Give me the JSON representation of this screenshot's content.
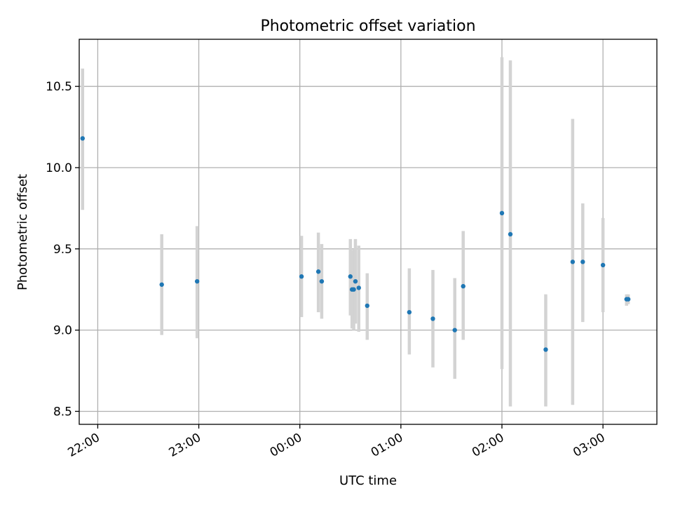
{
  "chart_data": {
    "type": "scatter",
    "title": "Photometric offset variation",
    "xlabel": "UTC time",
    "ylabel": "Photometric offset",
    "x_axis_type": "time",
    "x_time_reference_day": "2000-01-01",
    "xlim": [
      "2000-01-01T21:49:00",
      "2000-01-02T03:32:00"
    ],
    "ylim": [
      8.42,
      10.79
    ],
    "x_ticks": [
      {
        "time": "2000-01-01T22:00:00",
        "label": "22:00"
      },
      {
        "time": "2000-01-01T23:00:00",
        "label": "23:00"
      },
      {
        "time": "2000-01-02T00:00:00",
        "label": "00:00"
      },
      {
        "time": "2000-01-02T01:00:00",
        "label": "01:00"
      },
      {
        "time": "2000-01-02T02:00:00",
        "label": "02:00"
      },
      {
        "time": "2000-01-02T03:00:00",
        "label": "03:00"
      }
    ],
    "y_ticks": [
      {
        "value": 8.5,
        "label": "8.5"
      },
      {
        "value": 9.0,
        "label": "9.0"
      },
      {
        "value": 9.5,
        "label": "9.5"
      },
      {
        "value": 10.0,
        "label": "10.0"
      },
      {
        "value": 10.5,
        "label": "10.5"
      }
    ],
    "grid": true,
    "x_tick_rotation_deg": 30,
    "point_color": "#1f77b4",
    "errorbar_color": "#d3d3d3",
    "points": [
      {
        "time": "2000-01-01T21:51:00",
        "y": 10.18,
        "yerr_low": 9.74,
        "yerr_high": 10.61
      },
      {
        "time": "2000-01-01T22:38:00",
        "y": 9.28,
        "yerr_low": 8.97,
        "yerr_high": 9.59
      },
      {
        "time": "2000-01-01T22:59:00",
        "y": 9.3,
        "yerr_low": 8.95,
        "yerr_high": 9.64
      },
      {
        "time": "2000-01-02T00:01:00",
        "y": 9.33,
        "yerr_low": 9.08,
        "yerr_high": 9.58
      },
      {
        "time": "2000-01-02T00:11:00",
        "y": 9.36,
        "yerr_low": 9.11,
        "yerr_high": 9.6
      },
      {
        "time": "2000-01-02T00:13:00",
        "y": 9.3,
        "yerr_low": 9.07,
        "yerr_high": 9.53
      },
      {
        "time": "2000-01-02T00:30:00",
        "y": 9.33,
        "yerr_low": 9.09,
        "yerr_high": 9.56
      },
      {
        "time": "2000-01-02T00:31:00",
        "y": 9.25,
        "yerr_low": 9.01,
        "yerr_high": 9.49
      },
      {
        "time": "2000-01-02T00:32:00",
        "y": 9.25,
        "yerr_low": 9.0,
        "yerr_high": 9.5
      },
      {
        "time": "2000-01-02T00:33:00",
        "y": 9.3,
        "yerr_low": 9.04,
        "yerr_high": 9.56
      },
      {
        "time": "2000-01-02T00:35:00",
        "y": 9.26,
        "yerr_low": 8.99,
        "yerr_high": 9.52
      },
      {
        "time": "2000-01-02T00:40:00",
        "y": 9.15,
        "yerr_low": 8.94,
        "yerr_high": 9.35
      },
      {
        "time": "2000-01-02T01:05:00",
        "y": 9.11,
        "yerr_low": 8.85,
        "yerr_high": 9.38
      },
      {
        "time": "2000-01-02T01:19:00",
        "y": 9.07,
        "yerr_low": 8.77,
        "yerr_high": 9.37
      },
      {
        "time": "2000-01-02T01:32:00",
        "y": 9.0,
        "yerr_low": 8.7,
        "yerr_high": 9.32
      },
      {
        "time": "2000-01-02T01:37:00",
        "y": 9.27,
        "yerr_low": 8.94,
        "yerr_high": 9.61
      },
      {
        "time": "2000-01-02T02:00:00",
        "y": 9.72,
        "yerr_low": 8.76,
        "yerr_high": 10.68
      },
      {
        "time": "2000-01-02T02:05:00",
        "y": 9.59,
        "yerr_low": 8.53,
        "yerr_high": 10.66
      },
      {
        "time": "2000-01-02T02:26:00",
        "y": 8.88,
        "yerr_low": 8.53,
        "yerr_high": 9.22
      },
      {
        "time": "2000-01-02T02:42:00",
        "y": 9.42,
        "yerr_low": 8.54,
        "yerr_high": 10.3
      },
      {
        "time": "2000-01-02T02:48:00",
        "y": 9.42,
        "yerr_low": 9.05,
        "yerr_high": 9.78
      },
      {
        "time": "2000-01-02T03:00:00",
        "y": 9.4,
        "yerr_low": 9.11,
        "yerr_high": 9.69
      },
      {
        "time": "2000-01-02T03:14:00",
        "y": 9.19,
        "yerr_low": 9.15,
        "yerr_high": 9.22
      },
      {
        "time": "2000-01-02T03:15:00",
        "y": 9.19,
        "yerr_low": 9.16,
        "yerr_high": 9.22
      }
    ]
  }
}
